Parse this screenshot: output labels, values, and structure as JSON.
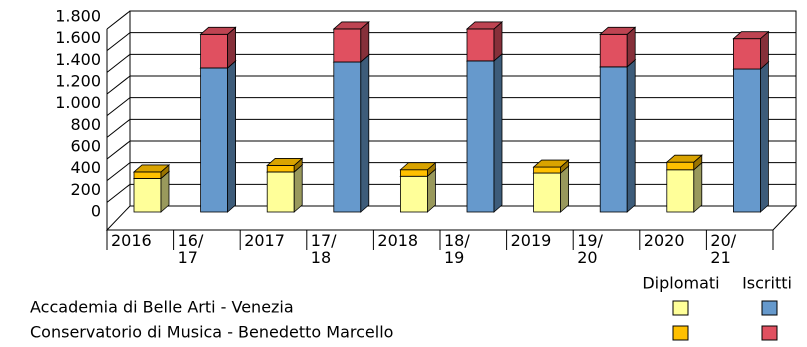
{
  "chart_data": {
    "type": "bar3d-stacked",
    "categories": [
      "2016",
      "16/\n17",
      "2017",
      "17/\n18",
      "2018",
      "18/\n19",
      "2019",
      "19/\n20",
      "2020",
      "20/\n21"
    ],
    "groups": [
      "Diplomati",
      "Iscritti"
    ],
    "rows": [
      {
        "name": "Accademia di Belle Arti - Venezia",
        "series": [
          {
            "color": "#ffff99",
            "values": [
              310,
              null,
              370,
              null,
              330,
              null,
              360,
              null,
              390,
              null
            ]
          },
          {
            "color": "#6699cc",
            "values": [
              null,
              1330,
              null,
              1385,
              null,
              1395,
              null,
              1340,
              null,
              1320
            ]
          }
        ]
      },
      {
        "name": "Conservatorio di Musica - Benedetto Marcello",
        "series": [
          {
            "color": "#ffc000",
            "values": [
              60,
              null,
              60,
              null,
              60,
              null,
              55,
              null,
              70,
              null
            ]
          },
          {
            "color": "#e05060",
            "values": [
              null,
              310,
              null,
              305,
              null,
              295,
              null,
              300,
              null,
              280
            ]
          }
        ]
      }
    ],
    "ylim": [
      0,
      1800
    ],
    "yticks": [
      0,
      200,
      400,
      600,
      800,
      {
        "value": 1000,
        "label": "1.000"
      },
      {
        "value": 1200,
        "label": "1.200"
      },
      {
        "value": 1400,
        "label": "1.400"
      },
      {
        "value": 1600,
        "label": "1.600"
      },
      {
        "value": 1800,
        "label": "1.800"
      }
    ],
    "grid": true
  }
}
